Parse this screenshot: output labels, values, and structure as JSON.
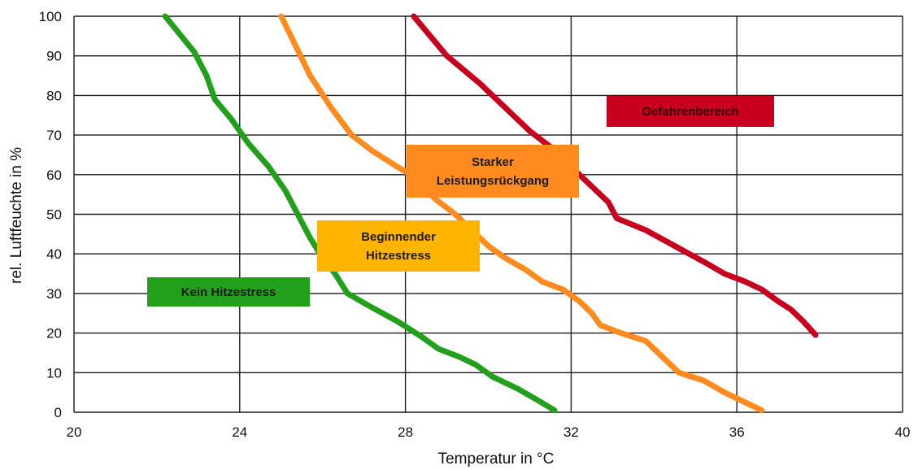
{
  "chart_data": {
    "type": "line",
    "xlabel": "Temperatur in °C",
    "ylabel": "rel. Luftfeuchte in %",
    "xlim": [
      20,
      40
    ],
    "ylim": [
      0,
      100
    ],
    "x_ticks": [
      "20",
      "24",
      "28",
      "32",
      "36",
      "40"
    ],
    "y_ticks": [
      "0",
      "10",
      "20",
      "30",
      "40",
      "50",
      "60",
      "70",
      "80",
      "90",
      "100"
    ],
    "grid": true,
    "series": [
      {
        "name": "Kein Hitzestress",
        "color": "#22a01c",
        "points": [
          [
            22.2,
            100
          ],
          [
            22.9,
            91
          ],
          [
            23.2,
            85
          ],
          [
            23.4,
            79
          ],
          [
            23.8,
            74
          ],
          [
            24.2,
            68
          ],
          [
            24.7,
            62
          ],
          [
            25.1,
            56
          ],
          [
            25.4,
            50
          ],
          [
            25.7,
            44
          ],
          [
            26.0,
            39
          ],
          [
            26.3,
            35
          ],
          [
            26.6,
            30
          ],
          [
            27.1,
            27
          ],
          [
            27.8,
            23
          ],
          [
            28.4,
            19
          ],
          [
            28.8,
            16
          ],
          [
            29.3,
            14
          ],
          [
            29.7,
            12
          ],
          [
            30.1,
            9
          ],
          [
            30.7,
            6
          ],
          [
            31.2,
            3
          ],
          [
            31.6,
            0.5
          ]
        ]
      },
      {
        "name": "Beginnender Hitzestress",
        "color": "#ff8a1e",
        "points": [
          [
            25.0,
            100
          ],
          [
            25.7,
            85
          ],
          [
            26.2,
            77
          ],
          [
            26.7,
            70
          ],
          [
            27.2,
            66
          ],
          [
            27.8,
            62
          ],
          [
            28.3,
            59
          ],
          [
            28.7,
            54
          ],
          [
            29.2,
            50
          ],
          [
            29.7,
            45
          ],
          [
            30.0,
            42
          ],
          [
            30.4,
            39
          ],
          [
            30.9,
            36
          ],
          [
            31.3,
            33
          ],
          [
            31.8,
            31
          ],
          [
            32.2,
            28
          ],
          [
            32.5,
            25
          ],
          [
            32.7,
            22
          ],
          [
            33.2,
            20
          ],
          [
            33.8,
            18
          ],
          [
            34.2,
            14
          ],
          [
            34.6,
            10
          ],
          [
            35.2,
            8
          ],
          [
            35.7,
            5
          ],
          [
            36.2,
            2.5
          ],
          [
            36.6,
            0.5
          ]
        ]
      },
      {
        "name": "Starker Leistungsrückgang",
        "color": "#c8001e",
        "points": [
          [
            28.2,
            100
          ],
          [
            29.0,
            90
          ],
          [
            29.8,
            83
          ],
          [
            30.4,
            77
          ],
          [
            31.0,
            71
          ],
          [
            31.5,
            67
          ],
          [
            32.0,
            62
          ],
          [
            32.5,
            57
          ],
          [
            32.9,
            53
          ],
          [
            33.1,
            49
          ],
          [
            33.8,
            46
          ],
          [
            34.5,
            42
          ],
          [
            35.2,
            38
          ],
          [
            35.7,
            35
          ],
          [
            36.2,
            33
          ],
          [
            36.6,
            31
          ],
          [
            37.0,
            28
          ],
          [
            37.3,
            26
          ],
          [
            37.6,
            23
          ],
          [
            37.9,
            19.5
          ]
        ]
      }
    ],
    "zones": [
      {
        "label_lines": [
          "Kein Hitzestress"
        ],
        "bg": "#22a01c",
        "fg": "#1a1a1a"
      },
      {
        "label_lines": [
          "Beginnender",
          "Hitzestress"
        ],
        "bg": "#ffb400",
        "fg": "#1a1a1a"
      },
      {
        "label_lines": [
          "Starker",
          "Leistungsrückgang"
        ],
        "bg": "#ff8a1e",
        "fg": "#1a1a1a"
      },
      {
        "label_lines": [
          "Gefahrenbereich"
        ],
        "bg": "#c8001e",
        "fg": "#2a0000"
      }
    ]
  }
}
